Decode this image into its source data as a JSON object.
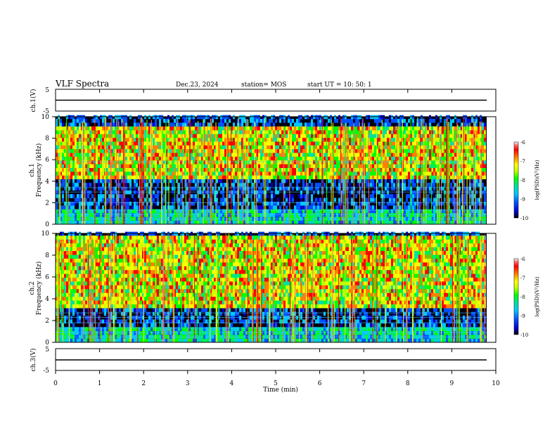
{
  "header": {
    "title": "VLF Spectra",
    "date": "Dec.23, 2024",
    "station": "station= MOS",
    "start": "start  UT =  10: 50: 1"
  },
  "panels": {
    "ch1v": {
      "ylabel": "ch.1(V)",
      "ticks": [
        "5",
        "-5"
      ]
    },
    "ch1": {
      "ylabel": "ch.1",
      "ylabel2": "Frequency (kHz)",
      "ticks": [
        "10",
        "8",
        "6",
        "4",
        "2",
        "0"
      ]
    },
    "ch2": {
      "ylabel": "ch.2",
      "ylabel2": "Frequency (kHz)",
      "ticks": [
        "10",
        "8",
        "6",
        "4",
        "2",
        "0"
      ]
    },
    "ch3v": {
      "ylabel": "ch.3(V)",
      "ticks": [
        "5",
        "-5"
      ]
    }
  },
  "xaxis": {
    "label": "Time (min)",
    "ticks": [
      "0",
      "1",
      "2",
      "3",
      "4",
      "5",
      "6",
      "7",
      "8",
      "9",
      "10"
    ]
  },
  "colorbar": {
    "label": "log(PSD)(V²/Hz)",
    "ticks": [
      "-6",
      "-7",
      "-8",
      "-9",
      "-10"
    ],
    "colors": [
      "#000000",
      "#0000c8",
      "#0050ff",
      "#00c8ff",
      "#00e0a0",
      "#00ff00",
      "#c8ff00",
      "#ffff00",
      "#ff8000",
      "#ff0000",
      "#ff7070",
      "#ffffff"
    ]
  },
  "chart_data": [
    {
      "type": "line",
      "title": "VLF Spectra",
      "ylabel": "ch.1(V)",
      "xlabel": "Time (min)",
      "ylim": [
        -5,
        5
      ],
      "xlim": [
        0,
        10
      ],
      "series": [
        {
          "x": [
            0,
            9.8
          ],
          "y": [
            0,
            0
          ]
        }
      ]
    },
    {
      "type": "heatmap",
      "ylabel": "ch.1 Frequency (kHz)",
      "xlabel": "Time (min)",
      "xlim": [
        0,
        10
      ],
      "ylim": [
        0,
        10
      ],
      "data_xrange": [
        0,
        9.8
      ],
      "color_scale": "log(PSD)(V²/Hz)",
      "zlim": [
        -10,
        -6
      ],
      "colormap": "rainbow",
      "horizontal_lines_kHz": [
        0.5,
        0.9,
        1.3,
        2.0,
        3.0,
        3.4,
        5.8
      ],
      "active_band_kHz": [
        4,
        9
      ]
    },
    {
      "type": "heatmap",
      "ylabel": "ch.2 Frequency (kHz)",
      "xlabel": "Time (min)",
      "xlim": [
        0,
        10
      ],
      "ylim": [
        0,
        10
      ],
      "data_xrange": [
        0,
        9.8
      ],
      "color_scale": "log(PSD)(V²/Hz)",
      "zlim": [
        -10,
        -6
      ],
      "colormap": "rainbow",
      "horizontal_lines_kHz": [
        0.5,
        0.9,
        1.3,
        1.8,
        2.3,
        2.7
      ],
      "active_band_kHz": [
        3,
        9.5
      ]
    },
    {
      "type": "line",
      "ylabel": "ch.3(V)",
      "xlabel": "Time (min)",
      "ylim": [
        -5,
        5
      ],
      "xlim": [
        0,
        10
      ],
      "series": [
        {
          "x": [
            0,
            9.8
          ],
          "y": [
            0,
            0
          ]
        }
      ]
    }
  ]
}
